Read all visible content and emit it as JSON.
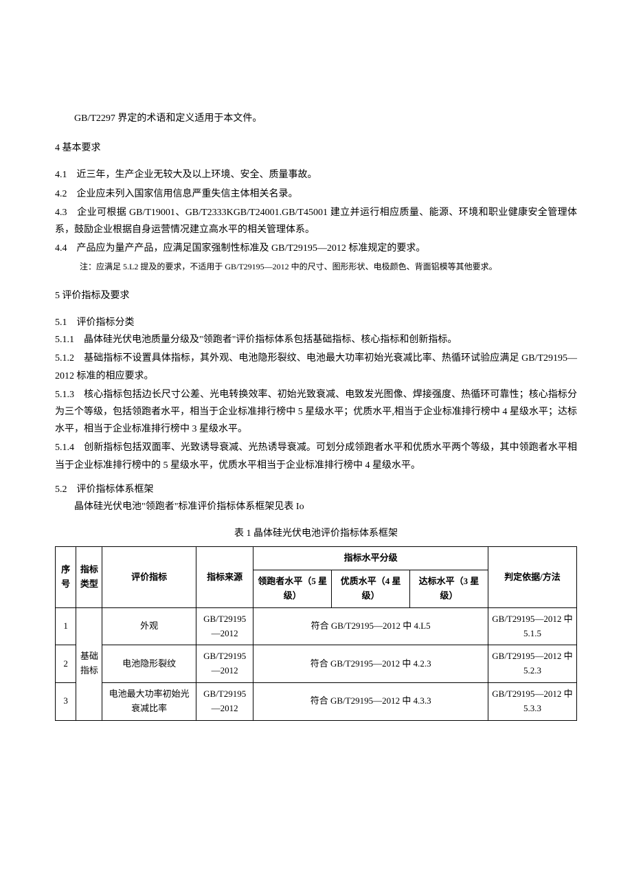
{
  "intro_line": "GB/T2297 界定的术语和定义适用于本文件。",
  "sec4_title": "4 基本要求",
  "sec4_1": "4.1　近三年，生产企业无较大及以上环境、安全、质量事故。",
  "sec4_2": "4.2　企业应未列入国家信用信息严重失信主体相关名录。",
  "sec4_3": "4.3　企业可根据 GB/T19001、GB/T2333KGB/T24001.GB/T45001 建立并运行相应质量、能源、环境和职业健康安全管理体系，鼓励企业根据自身运营情况建立高水平的相关管理体系。",
  "sec4_4": "4.4　产品应为量产产品，应满足国家强制性标准及 GB/T29195—2012 标准规定的要求。",
  "sec4_note": "注：应满足 5.L2 提及的要求，不适用于 GB/T29195—2012 中的尺寸、图形形状、电极颜色、背面铝模等其他要求。",
  "sec5_title": "5 评价指标及要求",
  "sec5_1_title": "5.1　评价指标分类",
  "sec5_1_1": "5.1.1　晶体硅光伏电池质量分级及\"领跑者\"评价指标体系包括基础指标、核心指标和创新指标。",
  "sec5_1_2": "5.1.2　基础指标不设置具体指标，其外观、电池隐形裂纹、电池最大功率初始光衰减比率、热循环试验应满足 GB/T29195—2012 标准的相应要求。",
  "sec5_1_3": "5.1.3　核心指标包括边长尺寸公差、光电转换效率、初始光致衰减、电致发光图像、焊接强度、热循环可靠性；核心指标分为三个等级，包括领跑者水平，相当于企业标准排行榜中 5 星级水平；优质水平,相当于企业标准排行榜中 4 星级水平；达标水平，相当于企业标准排行榜中 3 星级水平。",
  "sec5_1_4": "5.1.4　创新指标包括双面率、光致诱导衰减、光热诱导衰减。可划分成领跑者水平和优质水平两个等级，其中领跑者水平相当于企业标准排行榜中的 5 星级水平，优质水平相当于企业标准排行榜中 4 星级水平。",
  "sec5_2_title": "5.2　评价指标体系框架",
  "sec5_2_intro": "晶体硅光伏电池\"领跑者\"标准评价指标体系框架见表 Io",
  "table_caption": "表 1 晶体硅光伏电池评价指标体系框架",
  "table": {
    "header_seq": "序号",
    "header_type": "指标类型",
    "header_metric": "评价指标",
    "header_source": "指标来源",
    "header_level_group": "指标水平分级",
    "header_lvl_a": "领跑者水平（5 星级）",
    "header_lvl_b": "优质水平（4 星级）",
    "header_lvl_c": "达标水平（3 星级）",
    "header_basis": "判定依据/方法",
    "rows": [
      {
        "seq": "1",
        "type": "基础指标",
        "metric": "外观",
        "source": "GB/T29195—2012",
        "level": "符合 GB/T29195—2012 中 4.L5",
        "basis": "GB/T29195—2012 中 5.1.5"
      },
      {
        "seq": "2",
        "type": "",
        "metric": "电池隐形裂纹",
        "source": "GB/T29195—2012",
        "level": "符合 GB/T29195—2012 中 4.2.3",
        "basis": "GB/T29195—2012 中 5.2.3"
      },
      {
        "seq": "3",
        "type": "",
        "metric": "电池最大功率初始光衰减比率",
        "source": "GB/T29195—2012",
        "level": "符合 GB/T29195—2012 中 4.3.3",
        "basis": "GB/T29195—2012 中 5.3.3"
      }
    ]
  },
  "colors": {
    "text": "#000000",
    "bg": "#ffffff",
    "border": "#000000"
  }
}
